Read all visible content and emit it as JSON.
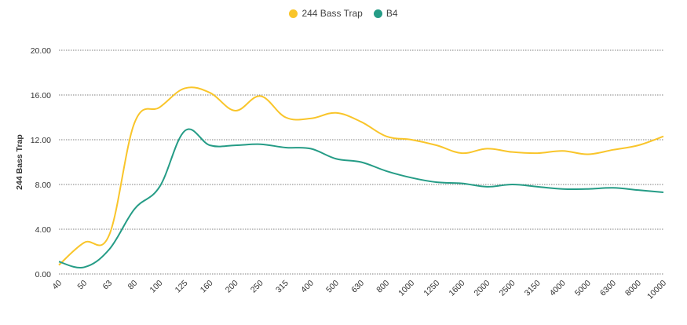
{
  "chart_data": {
    "type": "line",
    "ylabel": "244 Bass Trap",
    "xlabel": "",
    "ylim": [
      0,
      20
    ],
    "yticks": [
      "0.00",
      "4.00",
      "8.00",
      "12.00",
      "16.00",
      "20.00"
    ],
    "categories": [
      "40",
      "50",
      "63",
      "80",
      "100",
      "125",
      "160",
      "200",
      "250",
      "315",
      "400",
      "500",
      "630",
      "800",
      "1000",
      "1250",
      "1600",
      "2000",
      "2500",
      "3150",
      "4000",
      "5000",
      "6300",
      "8000",
      "10000"
    ],
    "grid": true,
    "legend_position": "top-center",
    "series": [
      {
        "name": "244 Bass Trap",
        "color": "#F9C52A",
        "values": [
          0.8,
          2.8,
          3.5,
          13.5,
          14.9,
          16.6,
          16.2,
          14.6,
          15.9,
          14.0,
          13.9,
          14.4,
          13.6,
          12.3,
          12.0,
          11.5,
          10.8,
          11.2,
          10.9,
          10.8,
          11.0,
          10.7,
          11.1,
          11.5,
          12.3
        ]
      },
      {
        "name": "B4",
        "color": "#259C86",
        "values": [
          1.1,
          0.6,
          2.2,
          5.8,
          7.8,
          12.8,
          11.5,
          11.5,
          11.6,
          11.3,
          11.2,
          10.3,
          10.0,
          9.2,
          8.6,
          8.2,
          8.1,
          7.8,
          8.0,
          7.8,
          7.6,
          7.6,
          7.7,
          7.5,
          7.3
        ]
      }
    ]
  }
}
